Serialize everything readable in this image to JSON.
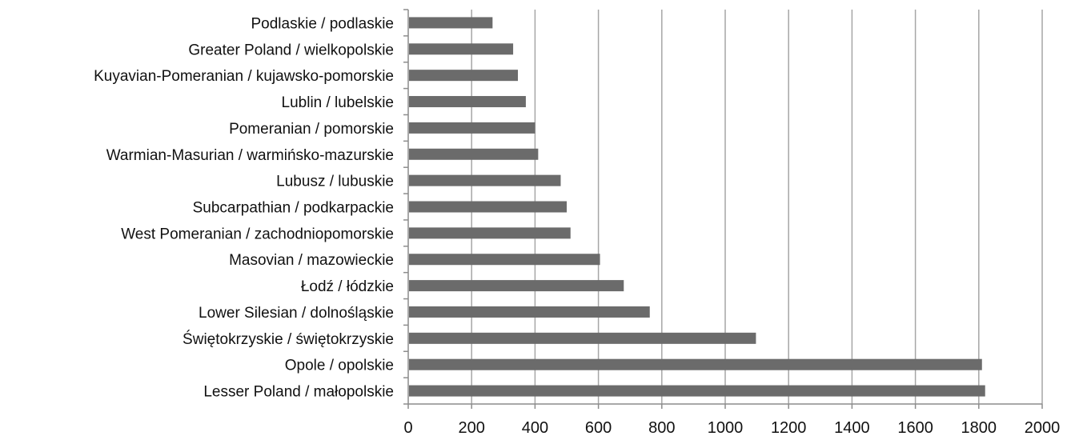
{
  "chart_data": {
    "type": "bar",
    "orientation": "horizontal",
    "categories": [
      "Lesser Poland / małopolskie",
      "Opole / opolskie",
      "Świętokrzyskie / świętokrzyskie",
      "Lower Silesian / dolnośląskie",
      "Łodź / łódzkie",
      "Masovian / mazowieckie",
      "West Pomeranian / zachodniopomorskie",
      "Subcarpathian / podkarpackie",
      "Lubusz / lubuskie",
      "Warmian-Masurian / warmińsko-mazurskie",
      "Pomeranian / pomorskie",
      "Lublin / lubelskie",
      "Kuyavian-Pomeranian / kujawsko-pomorskie",
      "Greater Poland / wielkopolskie",
      "Podlaskie / podlaskie"
    ],
    "values": [
      1820,
      1810,
      1097,
      762,
      680,
      605,
      512,
      500,
      481,
      410,
      400,
      371,
      346,
      331,
      266
    ],
    "xlim": [
      0,
      2000
    ],
    "x_ticks": [
      "0",
      "200",
      "400",
      "600",
      "800",
      "1000",
      "1200",
      "1400",
      "1600",
      "1800",
      "2000"
    ],
    "grid": "vertical",
    "legend": "none",
    "colors": {
      "bar": "#6b6b6b",
      "grid": "#a6a6a6",
      "axis": "#8c8c8c",
      "text": "#111111"
    }
  }
}
